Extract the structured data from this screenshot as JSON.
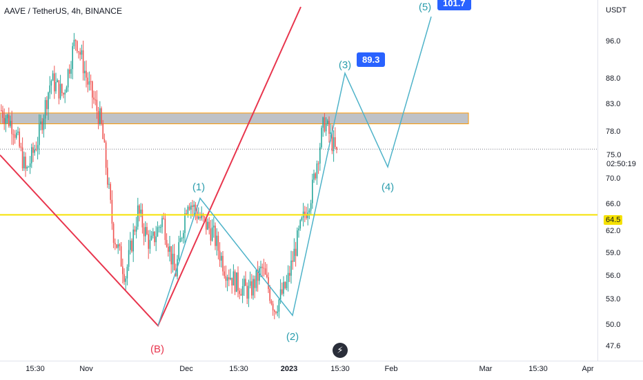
{
  "header": {
    "title": "AAVE / TetherUS, 4h, BINANCE",
    "price_unit": "USDT"
  },
  "price_axis": {
    "ticks": [
      "96.0",
      "88.0",
      "83.0",
      "78.0",
      "70.0",
      "66.0",
      "62.0",
      "59.0",
      "56.0",
      "53.0",
      "50.0",
      "47.6"
    ],
    "current_price": "75.0",
    "countdown": "02:50:19",
    "level_label": "64.5"
  },
  "time_axis": {
    "ticks": [
      "15:30",
      "Nov",
      "Dec",
      "15:30",
      "2023",
      "15:30",
      "Feb",
      "Mar",
      "15:30",
      "Apr"
    ]
  },
  "annotations": {
    "wave_labels": [
      "(1)",
      "(2)",
      "(3)",
      "(4)",
      "(5)"
    ],
    "corrective_label": "(B)",
    "target_3": "89.3",
    "target_5": "101.7"
  },
  "colors": {
    "candle_up": "#26a69a",
    "candle_down": "#ef5350",
    "wave_line": "#4fb3c9",
    "wave_text": "#2a9dad",
    "red_line": "#e8354d",
    "support_line": "#f5e100",
    "zone_fill": "#8a8f99",
    "zone_border": "#ff9800",
    "target_bg": "#2962ff"
  },
  "chart_data": {
    "type": "candlestick",
    "symbol": "AAVE / TetherUS",
    "interval": "4h",
    "exchange": "BINANCE",
    "y_scale": "log",
    "ylim": [
      46.5,
      104
    ],
    "price_levels": {
      "current": 75.0,
      "support_line": 64.5,
      "resistance_zone": [
        79.5,
        81.5
      ]
    },
    "wave_path": [
      {
        "label": "(B)",
        "price": 50.0
      },
      {
        "label": "(1)",
        "price": 67.0
      },
      {
        "label": "(2)",
        "price": 51.2
      },
      {
        "label": "(3)",
        "price": 89.3
      },
      {
        "label": "(4)",
        "price": 72.0
      },
      {
        "label": "(5)",
        "price": 101.7
      }
    ],
    "price_path": [
      82,
      79,
      71,
      77,
      88,
      85,
      97,
      87,
      80,
      62,
      56,
      65,
      60,
      64,
      56,
      67,
      64,
      62,
      57,
      55,
      54,
      57,
      52,
      55,
      62,
      68,
      80,
      74
    ],
    "red_line": [
      {
        "time_index": 0,
        "price": 74.0
      },
      {
        "time_index": 1,
        "price": 50.0
      },
      {
        "time_index": 2,
        "price": 104.0
      }
    ]
  }
}
